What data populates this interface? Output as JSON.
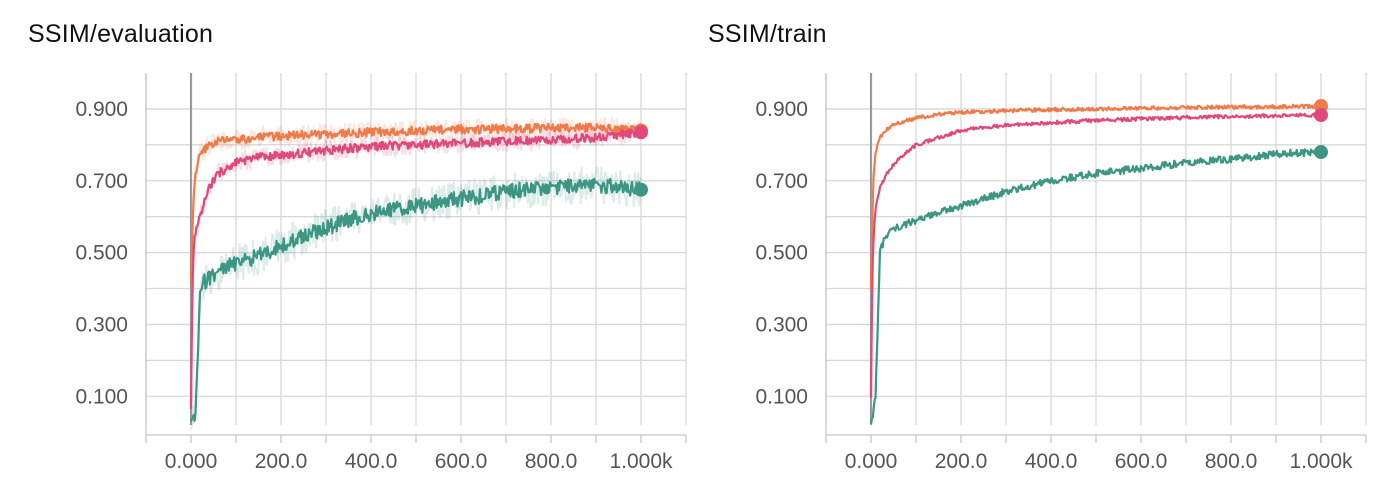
{
  "panels": [
    {
      "title": "SSIM/evaluation"
    },
    {
      "title": "SSIM/train"
    }
  ],
  "chart_data": [
    {
      "type": "line",
      "title": "SSIM/evaluation",
      "xlabel": "",
      "ylabel": "",
      "xlim": [
        -100,
        1100
      ],
      "ylim": [
        0.02,
        1.0
      ],
      "x_ticks": [
        0,
        200,
        400,
        600,
        800,
        1000
      ],
      "x_tick_labels": [
        "0.000",
        "200.0",
        "400.0",
        "600.0",
        "800.0",
        "1.000k"
      ],
      "y_ticks": [
        0.1,
        0.3,
        0.5,
        0.7,
        0.9
      ],
      "y_tick_labels": [
        "0.100",
        "0.300",
        "0.500",
        "0.700",
        "0.900"
      ],
      "grid": true,
      "series": [
        {
          "color": "#f07a48",
          "x": [
            0,
            3,
            6,
            10,
            20,
            40,
            60,
            100,
            150,
            200,
            300,
            400,
            500,
            600,
            700,
            800,
            900,
            1000
          ],
          "values": [
            0.41,
            0.55,
            0.66,
            0.72,
            0.77,
            0.8,
            0.81,
            0.815,
            0.82,
            0.825,
            0.83,
            0.835,
            0.84,
            0.843,
            0.845,
            0.847,
            0.848,
            0.84
          ]
        },
        {
          "color": "#e0497a",
          "x": [
            0,
            3,
            6,
            10,
            20,
            40,
            60,
            100,
            150,
            200,
            300,
            400,
            500,
            600,
            700,
            800,
            900,
            1000
          ],
          "values": [
            0.06,
            0.4,
            0.52,
            0.55,
            0.6,
            0.68,
            0.72,
            0.75,
            0.765,
            0.77,
            0.785,
            0.795,
            0.8,
            0.805,
            0.81,
            0.815,
            0.82,
            0.835
          ]
        },
        {
          "color": "#3d9683",
          "x": [
            0,
            5,
            10,
            15,
            20,
            30,
            40,
            60,
            100,
            150,
            200,
            300,
            400,
            500,
            600,
            700,
            800,
            900,
            1000
          ],
          "values": [
            0.02,
            0.03,
            0.05,
            0.2,
            0.38,
            0.42,
            0.43,
            0.45,
            0.47,
            0.49,
            0.52,
            0.57,
            0.61,
            0.63,
            0.65,
            0.67,
            0.68,
            0.69,
            0.675
          ]
        }
      ]
    },
    {
      "type": "line",
      "title": "SSIM/train",
      "xlabel": "",
      "ylabel": "",
      "xlim": [
        -100,
        1100
      ],
      "ylim": [
        0.02,
        1.0
      ],
      "x_ticks": [
        0,
        200,
        400,
        600,
        800,
        1000
      ],
      "x_tick_labels": [
        "0.000",
        "200.0",
        "400.0",
        "600.0",
        "800.0",
        "1.000k"
      ],
      "y_ticks": [
        0.1,
        0.3,
        0.5,
        0.7,
        0.9
      ],
      "y_tick_labels": [
        "0.100",
        "0.300",
        "0.500",
        "0.700",
        "0.900"
      ],
      "grid": true,
      "series": [
        {
          "color": "#f07a48",
          "x": [
            0,
            3,
            6,
            10,
            20,
            40,
            60,
            100,
            150,
            200,
            300,
            400,
            500,
            600,
            700,
            800,
            900,
            1000
          ],
          "values": [
            0.4,
            0.6,
            0.72,
            0.78,
            0.82,
            0.85,
            0.86,
            0.875,
            0.885,
            0.89,
            0.895,
            0.898,
            0.9,
            0.902,
            0.904,
            0.905,
            0.906,
            0.908
          ]
        },
        {
          "color": "#e0497a",
          "x": [
            0,
            3,
            6,
            10,
            20,
            40,
            60,
            100,
            150,
            200,
            300,
            400,
            500,
            600,
            700,
            800,
            900,
            1000
          ],
          "values": [
            0.1,
            0.45,
            0.55,
            0.62,
            0.68,
            0.73,
            0.76,
            0.8,
            0.82,
            0.84,
            0.855,
            0.862,
            0.868,
            0.872,
            0.876,
            0.879,
            0.881,
            0.883
          ]
        },
        {
          "color": "#3d9683",
          "x": [
            0,
            5,
            10,
            15,
            20,
            30,
            40,
            60,
            100,
            150,
            200,
            300,
            400,
            500,
            600,
            700,
            800,
            900,
            1000
          ],
          "values": [
            0.03,
            0.05,
            0.1,
            0.3,
            0.5,
            0.54,
            0.56,
            0.57,
            0.59,
            0.61,
            0.63,
            0.67,
            0.7,
            0.72,
            0.735,
            0.75,
            0.76,
            0.775,
            0.78
          ]
        }
      ]
    }
  ]
}
